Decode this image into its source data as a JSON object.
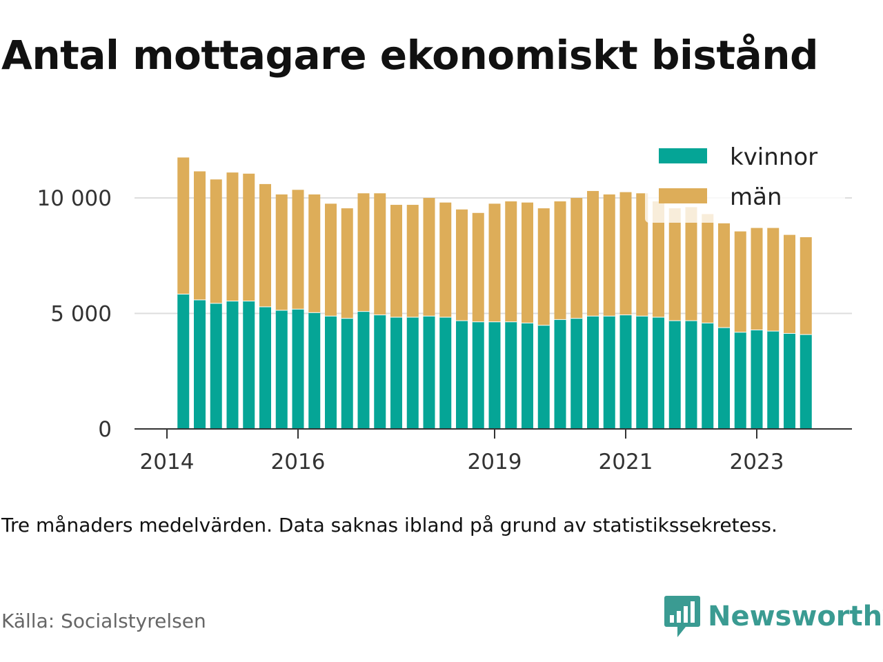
{
  "title": "Antal mottagare ekonomiskt bistånd",
  "note": "Tre månaders medelvärden. Data saknas ibland på grund av statistikssekretess.",
  "source": "Källa: Socialstyrelsen",
  "brand": {
    "name": "Newsworthy",
    "icon": "newsworthy-bar-chart-speech-bubble-icon",
    "color": "#3a9b92"
  },
  "chart_data": {
    "type": "bar",
    "stacked": true,
    "title": "",
    "xlabel": "",
    "ylabel": "",
    "ylim": [
      0,
      12000
    ],
    "yticks": [
      0,
      5000,
      10000
    ],
    "ytick_labels": [
      "0",
      "5 000",
      "10 000"
    ],
    "xticks": [
      2014,
      2016,
      2019,
      2021,
      2023
    ],
    "xtick_labels": [
      "2014",
      "2016",
      "2019",
      "2021",
      "2023"
    ],
    "grid": true,
    "legend": "top-right",
    "x": [
      2014.25,
      2014.5,
      2014.75,
      2015.0,
      2015.25,
      2015.5,
      2015.75,
      2016.0,
      2016.25,
      2016.5,
      2016.75,
      2017.0,
      2017.25,
      2017.5,
      2017.75,
      2018.0,
      2018.25,
      2018.5,
      2018.75,
      2019.0,
      2019.25,
      2019.5,
      2019.75,
      2020.0,
      2020.25,
      2020.5,
      2020.75,
      2021.0,
      2021.25,
      2021.5,
      2021.75,
      2022.0,
      2022.25,
      2022.5,
      2022.75,
      2023.0,
      2023.25,
      2023.5,
      2023.75
    ],
    "series": [
      {
        "name": "kvinnor",
        "color": "#05a596",
        "values": [
          5850,
          5600,
          5450,
          5550,
          5550,
          5300,
          5150,
          5200,
          5050,
          4900,
          4800,
          5100,
          4950,
          4850,
          4850,
          4900,
          4850,
          4700,
          4650,
          4650,
          4650,
          4600,
          4500,
          4750,
          4800,
          4900,
          4900,
          4950,
          4900,
          4850,
          4700,
          4700,
          4600,
          4400,
          4200,
          4300,
          4250,
          4150,
          4100
        ]
      },
      {
        "name": "män",
        "color": "#ddad59",
        "values": [
          5900,
          5550,
          5350,
          5550,
          5500,
          5300,
          5000,
          5150,
          5100,
          4850,
          4750,
          5100,
          5250,
          4850,
          4850,
          5100,
          4950,
          4800,
          4700,
          5100,
          5200,
          5200,
          5050,
          5100,
          5200,
          5400,
          5250,
          5300,
          5300,
          5000,
          4850,
          4900,
          4700,
          4500,
          4350,
          4400,
          4450,
          4250,
          4200
        ]
      }
    ]
  }
}
